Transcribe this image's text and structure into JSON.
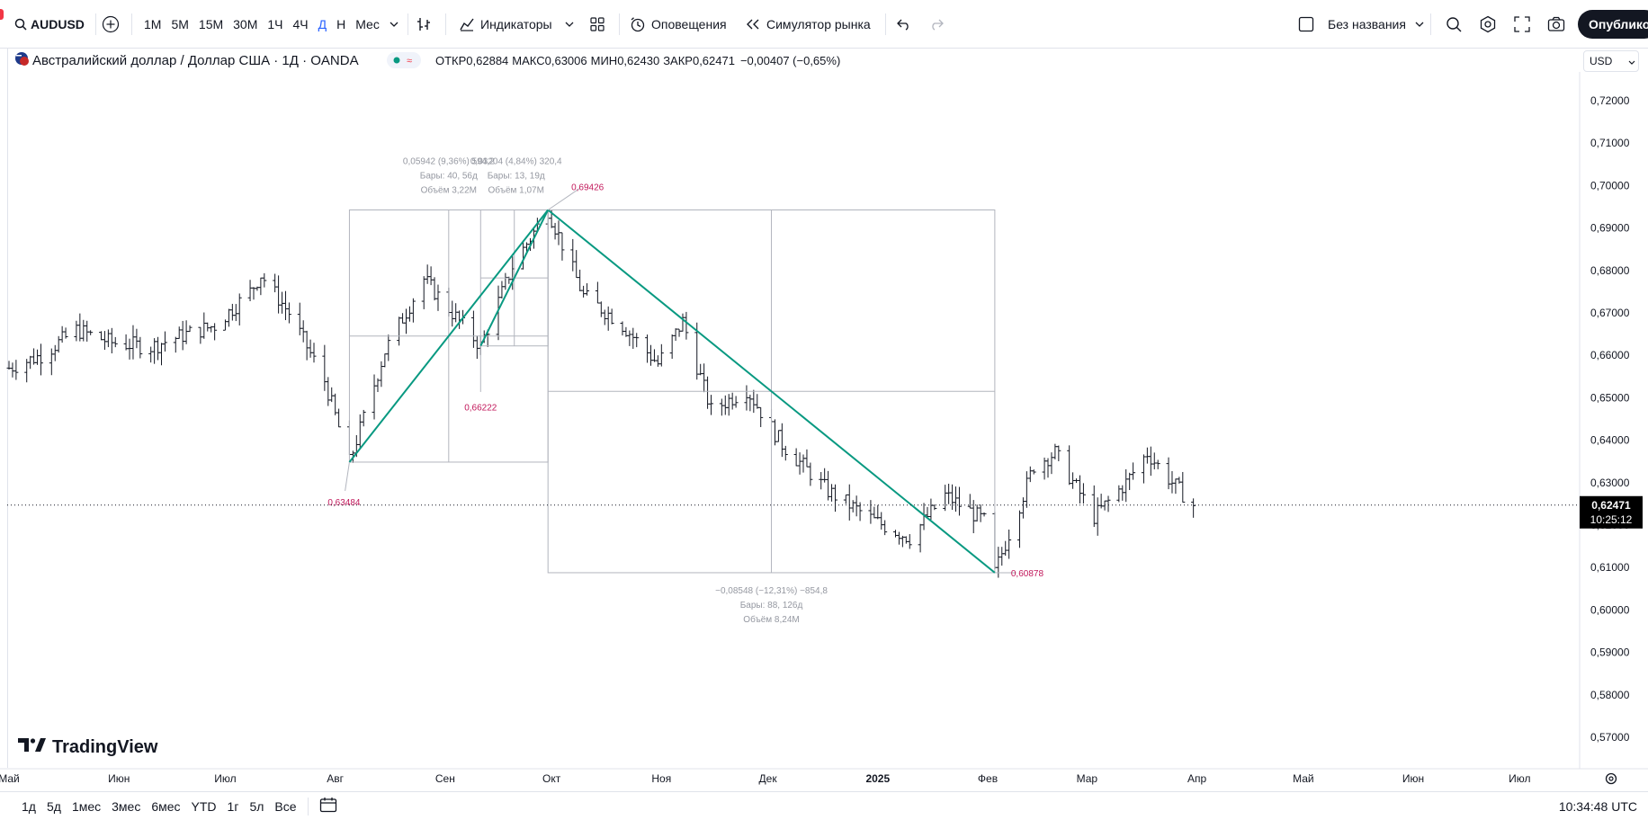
{
  "toolbar": {
    "symbol": "AUDUSD",
    "timeframes": [
      "1М",
      "5М",
      "15М",
      "30М",
      "1Ч",
      "4Ч",
      "Д",
      "Н",
      "Мес"
    ],
    "active_timeframe": "Д",
    "indicators": "Индикаторы",
    "alerts": "Оповещения",
    "replay": "Симулятор рынка",
    "layout_name": "Без названия",
    "publish": "Опубликов"
  },
  "legend": {
    "title": "Австралийский доллар / Доллар США · 1Д · OANDA",
    "open_label": "ОТКР",
    "open": "0,62884",
    "high_label": "МАКС",
    "high": "0,63006",
    "low_label": "МИН",
    "low": "0,62430",
    "close_label": "ЗАКР",
    "close": "0,62471",
    "change": "−0,00407 (−0,65%)"
  },
  "currency": "USD",
  "bottom": {
    "ranges": [
      "1д",
      "5д",
      "1мес",
      "3мес",
      "6мес",
      "YTD",
      "1г",
      "5л",
      "Все"
    ],
    "time": "10:34:48 UTC"
  },
  "brand": "TradingView",
  "colors": {
    "accent": "#2962ff",
    "wave_line": "#089981",
    "marker_text": "#c2185b",
    "price_label_bg": "#000000"
  },
  "chart_data": {
    "type": "bar",
    "style": "ohlc",
    "ylim": [
      0.565,
      0.725
    ],
    "y_ticks": [
      "0,72000",
      "0,71000",
      "0,70000",
      "0,69000",
      "0,68000",
      "0,67000",
      "0,66000",
      "0,65000",
      "0,64000",
      "0,63000",
      "0,62000",
      "0,61000",
      "0,60000",
      "0,59000",
      "0,58000",
      "0,57000"
    ],
    "x_ticks": [
      "Май",
      "Июн",
      "Июл",
      "Авг",
      "Сен",
      "Окт",
      "Ноя",
      "Дек",
      "2025",
      "Фев",
      "Мар",
      "Апр",
      "Май",
      "Июн",
      "Июл"
    ],
    "current_price": "0,62471",
    "countdown": "10:25:12",
    "price_path": [
      [
        "2024-05-01",
        0.657
      ],
      [
        "2024-05-10",
        0.66
      ],
      [
        "2024-05-20",
        0.666
      ],
      [
        "2024-05-30",
        0.663
      ],
      [
        "2024-06-10",
        0.662
      ],
      [
        "2024-06-20",
        0.665
      ],
      [
        "2024-06-28",
        0.667
      ],
      [
        "2024-07-08",
        0.675
      ],
      [
        "2024-07-11",
        0.679
      ],
      [
        "2024-07-19",
        0.67
      ],
      [
        "2024-07-29",
        0.654
      ],
      [
        "2024-08-05",
        0.6348
      ],
      [
        "2024-08-15",
        0.661
      ],
      [
        "2024-08-26",
        0.678
      ],
      [
        "2024-09-06",
        0.667
      ],
      [
        "2024-09-11",
        0.6622
      ],
      [
        "2024-09-20",
        0.681
      ],
      [
        "2024-09-30",
        0.6943
      ],
      [
        "2024-10-10",
        0.674
      ],
      [
        "2024-10-20",
        0.668
      ],
      [
        "2024-10-31",
        0.658
      ],
      [
        "2024-11-07",
        0.668
      ],
      [
        "2024-11-15",
        0.647
      ],
      [
        "2024-11-25",
        0.652
      ],
      [
        "2024-12-05",
        0.639
      ],
      [
        "2024-12-18",
        0.628
      ],
      [
        "2024-12-31",
        0.621
      ],
      [
        "2025-01-10",
        0.617
      ],
      [
        "2025-01-20",
        0.627
      ],
      [
        "2025-01-31",
        0.621
      ],
      [
        "2025-02-03",
        0.6088
      ],
      [
        "2025-02-14",
        0.634
      ],
      [
        "2025-02-20",
        0.637
      ],
      [
        "2025-03-03",
        0.622
      ],
      [
        "2025-03-12",
        0.63
      ],
      [
        "2025-03-18",
        0.637
      ],
      [
        "2025-03-25",
        0.63
      ],
      [
        "2025-03-31",
        0.6247
      ]
    ],
    "drawings": {
      "wave_points": [
        {
          "date": "2024-08-05",
          "price": 0.63484,
          "label": "0,63484"
        },
        {
          "date": "2024-09-30",
          "price": 0.69426,
          "label": "0,69426"
        },
        {
          "date": "2024-09-11",
          "price": 0.66222,
          "label": "0,66222"
        },
        {
          "date": "2025-02-03",
          "price": 0.60878,
          "label": "0,60878"
        }
      ],
      "range_1": {
        "line1": "0,05942 (9,36%) 594,2",
        "line2": "Бары: 40, 56д",
        "line3": "Объём 3,22M"
      },
      "range_2": {
        "line1": "0,03204 (4,84%) 320,4",
        "line2": "Бары: 13, 19д",
        "line3": "Объём 1,07M"
      },
      "range_3": {
        "line1": "−0,08548 (−12,31%) −854,8",
        "line2": "Бары: 88, 126д",
        "line3": "Объём 8,24M"
      }
    }
  }
}
